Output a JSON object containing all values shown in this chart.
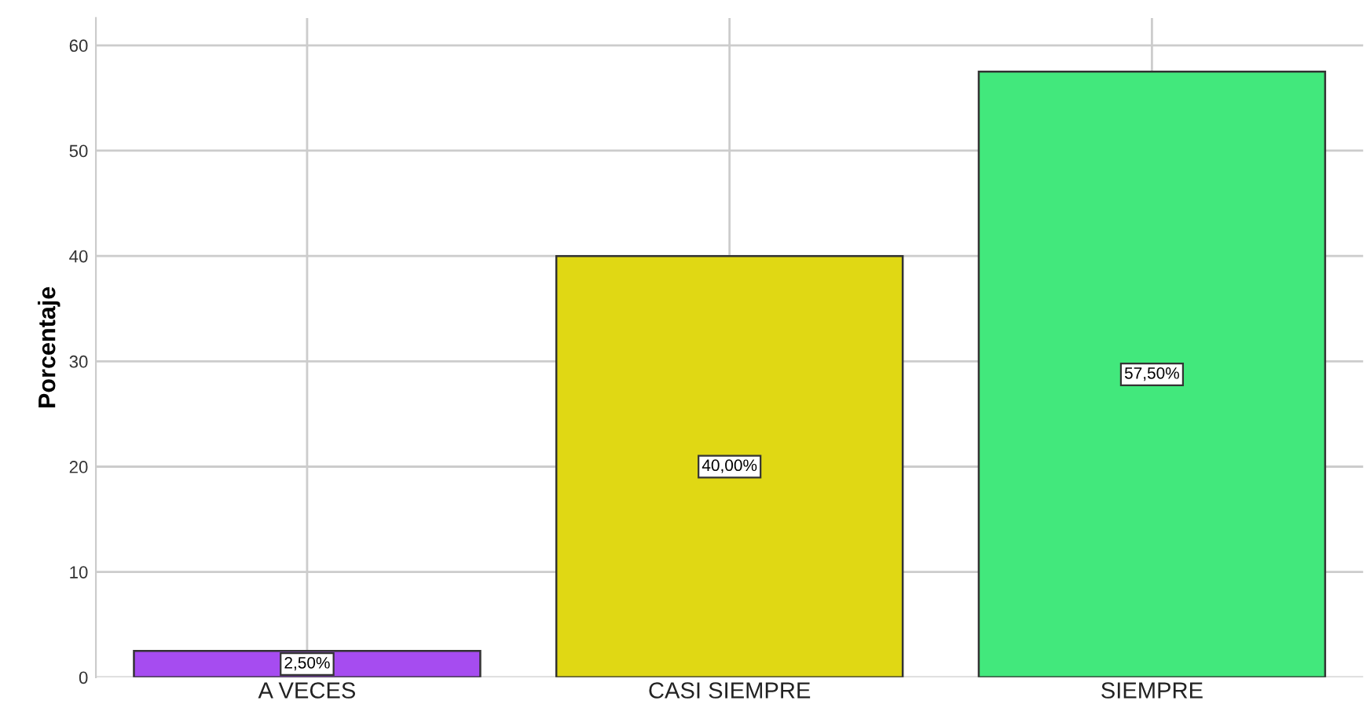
{
  "chart_data": {
    "type": "bar",
    "ylabel": "Porcentaje",
    "categories": [
      "A VECES",
      "CASI SIEMPRE",
      "SIEMPRE"
    ],
    "values": [
      2.5,
      40.0,
      57.5
    ],
    "colors": [
      "#a64cf0",
      "#e0d814",
      "#42e87c"
    ],
    "value_labels": [
      "2,50%",
      "40,00%",
      "57,50%"
    ],
    "ylim": [
      0,
      62.6
    ],
    "yticks": [
      0,
      10,
      20,
      30,
      40,
      50,
      60
    ],
    "grid": true
  }
}
